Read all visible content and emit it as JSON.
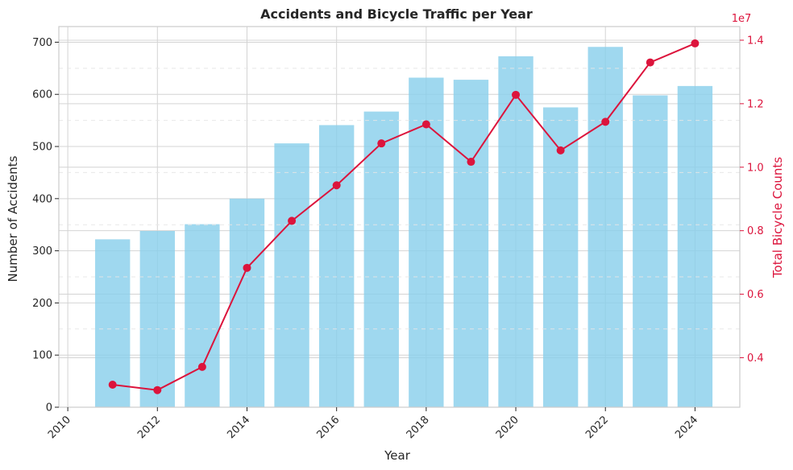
{
  "chart_data": {
    "type": "bar+line",
    "title": "Accidents and Bicycle Traffic per Year",
    "xlabel": "Year",
    "ylabel": "Number of Accidents",
    "ylabel_right": "Total Bicycle Counts",
    "right_axis_multiplier": "1e7",
    "x": [
      2011,
      2012,
      2013,
      2014,
      2015,
      2016,
      2017,
      2018,
      2019,
      2020,
      2021,
      2022,
      2023,
      2024
    ],
    "xlim": [
      2009.8,
      2025.0
    ],
    "xticks": [
      2010,
      2012,
      2014,
      2016,
      2018,
      2020,
      2022,
      2024
    ],
    "ylim": [
      0,
      730
    ],
    "yticks": [
      0,
      100,
      200,
      300,
      400,
      500,
      600,
      700
    ],
    "ylim_right": [
      0.244,
      1.443
    ],
    "yticks_right": [
      0.4,
      0.6,
      0.8,
      1.0,
      1.2,
      1.4
    ],
    "series": [
      {
        "name": "Number of Accidents",
        "kind": "bar",
        "axis": "left",
        "color": "#87ceeb",
        "values": [
          322,
          338,
          351,
          400,
          506,
          541,
          567,
          632,
          628,
          673,
          575,
          691,
          598,
          616
        ]
      },
      {
        "name": "Total Bicycle Counts",
        "kind": "line",
        "axis": "right",
        "color": "#dc143c",
        "values": [
          0.315,
          0.298,
          0.371,
          0.683,
          0.831,
          0.943,
          1.075,
          1.135,
          1.017,
          1.228,
          1.053,
          1.143,
          1.33,
          1.39
        ]
      }
    ],
    "grid": true
  }
}
